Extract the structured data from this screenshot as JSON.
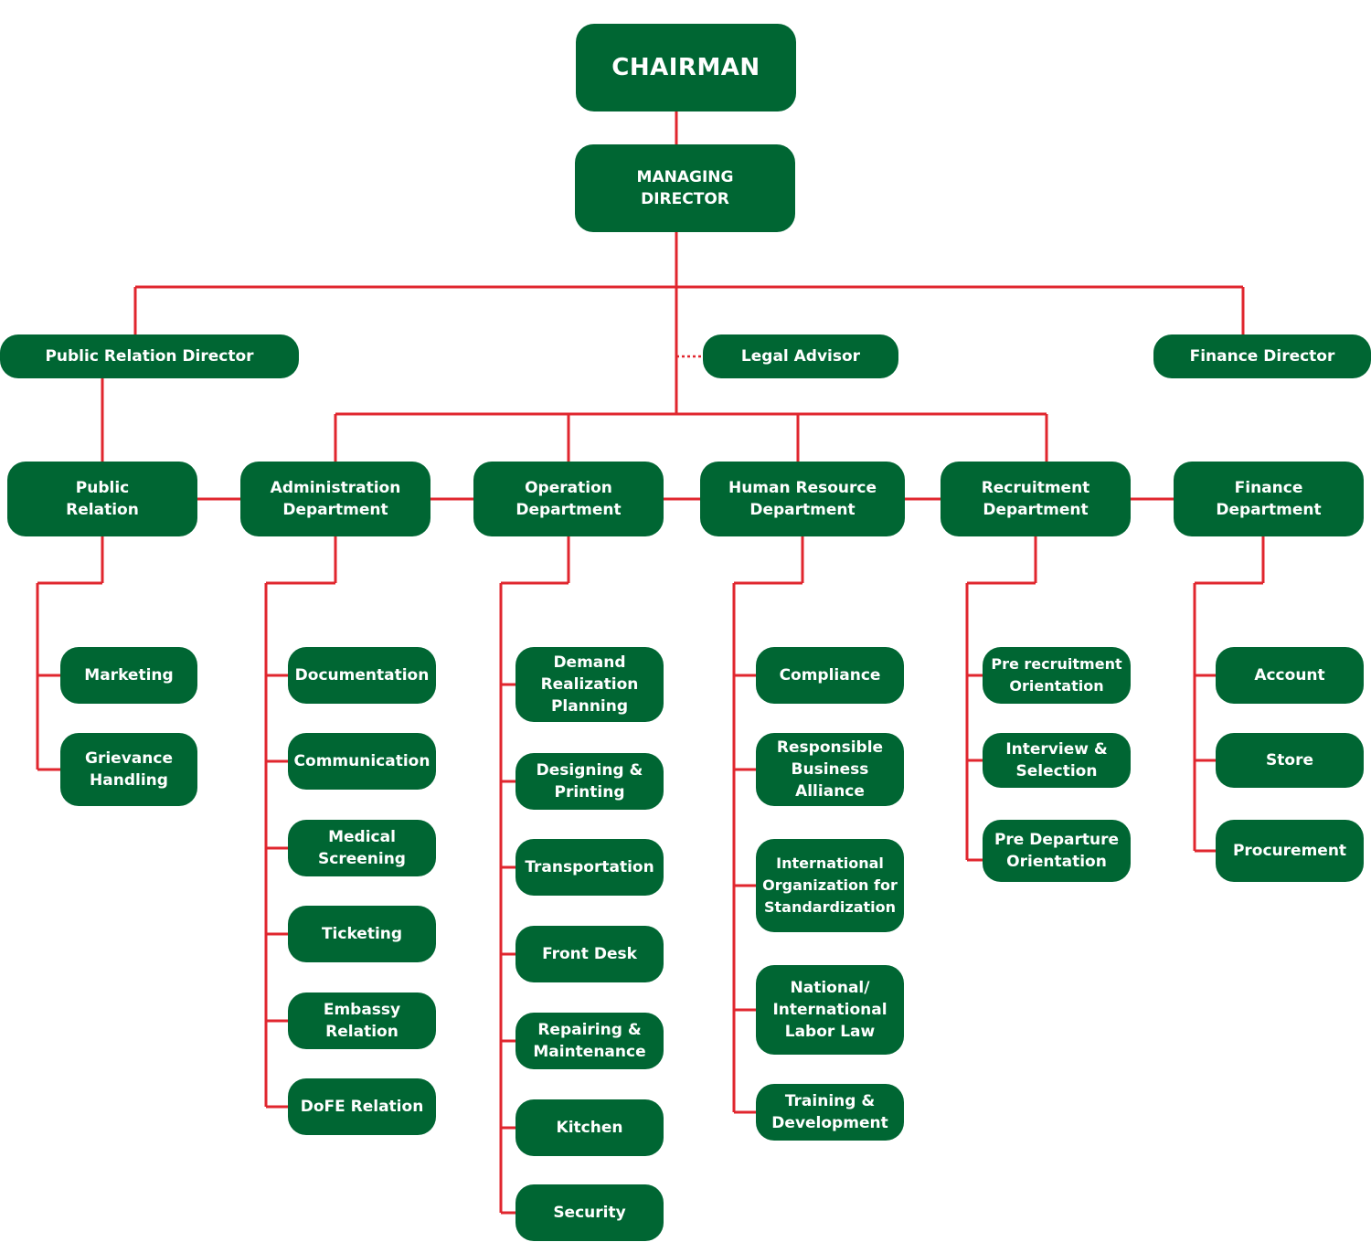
{
  "colors": {
    "box": "#006633",
    "text": "#ffffff",
    "line": "#e0262e"
  },
  "chairman": "CHAIRMAN",
  "managing_director": "MANAGING\nDIRECTOR",
  "directors": {
    "public_relation": "Public Relation Director",
    "legal_advisor": "Legal Advisor",
    "finance": "Finance Director"
  },
  "departments": [
    {
      "id": "pr",
      "label": "Public\nRelation",
      "children": [
        "Marketing",
        "Grievance\nHandling"
      ]
    },
    {
      "id": "admin",
      "label": "Administration\nDepartment",
      "children": [
        "Documentation",
        "Communication",
        "Medical\nScreening",
        "Ticketing",
        "Embassy\nRelation",
        "DoFE Relation"
      ]
    },
    {
      "id": "ops",
      "label": "Operation\nDepartment",
      "children": [
        "Demand\nRealization\nPlanning",
        "Designing &\nPrinting",
        "Transportation",
        "Front Desk",
        "Repairing &\nMaintenance",
        "Kitchen",
        "Security"
      ]
    },
    {
      "id": "hr",
      "label": "Human Resource\nDepartment",
      "children": [
        "Compliance",
        "Responsible\nBusiness\nAlliance",
        "International\nOrganization for\nStandardization",
        "National/\nInternational\nLabor Law",
        "Training &\nDevelopment"
      ]
    },
    {
      "id": "rec",
      "label": "Recruitment\nDepartment",
      "children": [
        "Pre recruitment\nOrientation",
        "Interview &\nSelection",
        "Pre Departure\nOrientation"
      ]
    },
    {
      "id": "fin",
      "label": "Finance\nDepartment",
      "children": [
        "Account",
        "Store",
        "Procurement"
      ]
    }
  ]
}
